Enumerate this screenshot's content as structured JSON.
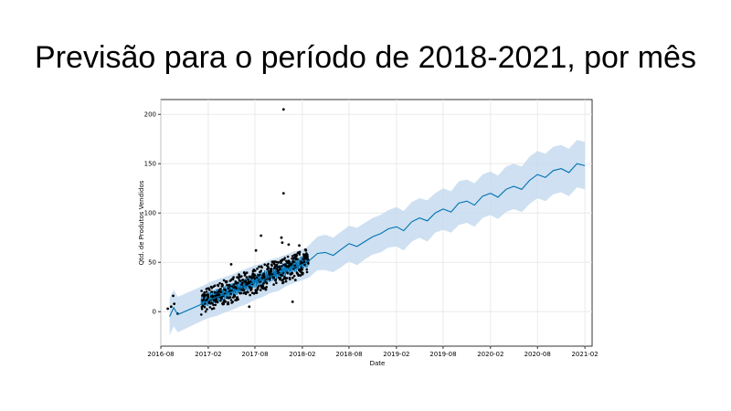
{
  "slide": {
    "title": "Previsão para o período de 2018-2021, por mês"
  },
  "colors": {
    "forecast_line": "#0072B2",
    "interval_fill": "#c6dbef",
    "observed_points": "#000000",
    "grid": "#e6e6e6"
  },
  "chart_data": {
    "type": "line",
    "title": "",
    "xlabel": "Date",
    "ylabel": "Qtd. de Produtos Vendidos",
    "ylim": [
      -35,
      215
    ],
    "xlim": [
      "2016-08-01",
      "2021-03-01"
    ],
    "x_ticks": [
      "2016-08",
      "2017-02",
      "2017-08",
      "2018-02",
      "2018-08",
      "2019-02",
      "2019-08",
      "2020-02",
      "2020-08",
      "2021-02"
    ],
    "y_ticks": [
      0,
      50,
      100,
      150,
      200
    ],
    "grid": true,
    "series": [
      {
        "kind": "forecast",
        "x": [
          "2016-09-04",
          "2016-09-20",
          "2016-10-06",
          "2017-01-10",
          "2017-02-08",
          "2017-03-10",
          "2017-04-05",
          "2017-05-07",
          "2017-06-03",
          "2017-07-02",
          "2017-08-01",
          "2017-09-01",
          "2017-10-01",
          "2017-11-01",
          "2017-12-01",
          "2018-01-01",
          "2018-02-12",
          "2018-03-01",
          "2018-04-01",
          "2018-05-01",
          "2018-06-01",
          "2018-07-01",
          "2018-08-01",
          "2018-09-01",
          "2018-10-01",
          "2018-11-01",
          "2018-12-01",
          "2019-01-01",
          "2019-02-01",
          "2019-03-01",
          "2019-04-01",
          "2019-05-01",
          "2019-06-01",
          "2019-07-01",
          "2019-08-01",
          "2019-09-01",
          "2019-10-01",
          "2019-11-01",
          "2019-12-01",
          "2020-01-01",
          "2020-02-01",
          "2020-03-01",
          "2020-04-01",
          "2020-05-01",
          "2020-06-01",
          "2020-07-01",
          "2020-08-01",
          "2020-09-01",
          "2020-10-01",
          "2020-11-01",
          "2020-12-01",
          "2021-01-01",
          "2021-02-01"
        ],
        "yhat": [
          -5,
          4,
          -3,
          8,
          12,
          15,
          17,
          20,
          23,
          26,
          30,
          32,
          36,
          38,
          42,
          45,
          49,
          52,
          59,
          60,
          57,
          63,
          69,
          66,
          71,
          76,
          79,
          84,
          86,
          82,
          91,
          95,
          92,
          100,
          104,
          101,
          110,
          112,
          108,
          117,
          120,
          116,
          124,
          127,
          124,
          133,
          139,
          136,
          143,
          145,
          141,
          150,
          148
        ],
        "yhat_lower": [
          -24,
          -15,
          -21,
          -9,
          -6,
          -4,
          -1,
          2,
          5,
          8,
          12,
          15,
          19,
          21,
          26,
          29,
          33,
          35,
          42,
          42,
          40,
          45,
          51,
          47,
          53,
          58,
          60,
          65,
          66,
          62,
          71,
          75,
          71,
          80,
          83,
          80,
          88,
          90,
          86,
          95,
          98,
          94,
          101,
          104,
          101,
          109,
          115,
          112,
          119,
          121,
          117,
          126,
          124
        ],
        "yhat_upper": [
          14,
          22,
          15,
          26,
          30,
          33,
          35,
          38,
          41,
          44,
          47,
          49,
          53,
          55,
          58,
          61,
          64,
          68,
          76,
          78,
          75,
          81,
          87,
          85,
          90,
          95,
          98,
          103,
          106,
          102,
          111,
          115,
          113,
          120,
          125,
          122,
          132,
          134,
          130,
          139,
          142,
          138,
          147,
          150,
          147,
          157,
          163,
          160,
          167,
          169,
          165,
          174,
          172
        ]
      },
      {
        "kind": "observed",
        "highlighted_points": [
          {
            "x": "2017-11-20",
            "y": 205
          },
          {
            "x": "2017-11-20",
            "y": 120
          },
          {
            "x": "2017-11-12",
            "y": 75
          },
          {
            "x": "2017-11-15",
            "y": 70
          },
          {
            "x": "2017-08-25",
            "y": 77
          },
          {
            "x": "2017-08-05",
            "y": 62
          },
          {
            "x": "2017-12-10",
            "y": 68
          },
          {
            "x": "2017-12-25",
            "y": 10
          },
          {
            "x": "2017-07-10",
            "y": 5
          },
          {
            "x": "2017-05-01",
            "y": 48
          },
          {
            "x": "2016-09-18",
            "y": 16
          },
          {
            "x": "2016-09-10",
            "y": 5
          },
          {
            "x": "2016-09-22",
            "y": 8
          },
          {
            "x": "2016-08-28",
            "y": 3
          },
          {
            "x": "2016-10-05",
            "y": -2
          },
          {
            "x": "2018-02-15",
            "y": 62
          },
          {
            "x": "2018-02-20",
            "y": 55
          },
          {
            "x": "2018-01-20",
            "y": 67
          },
          {
            "x": "2018-01-05",
            "y": 32
          }
        ],
        "dense_range": {
          "x_start": "2017-01-05",
          "x_end": "2018-02-25",
          "trend_start": 10,
          "trend_end": 52,
          "spread": 13
        }
      }
    ]
  }
}
